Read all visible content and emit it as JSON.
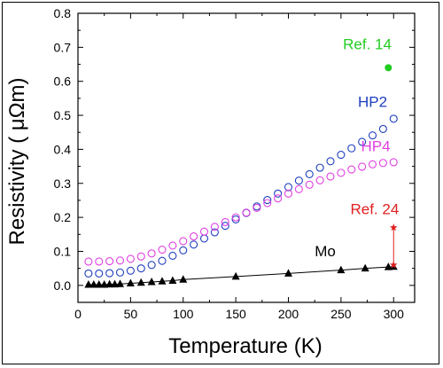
{
  "chart_data": {
    "type": "scatter",
    "xlabel": "Temperature (K)",
    "ylabel": "Resistivity ( μΩm)",
    "xlim": [
      0,
      320
    ],
    "ylim": [
      -0.05,
      0.8
    ],
    "xticks": [
      0,
      50,
      100,
      150,
      200,
      250,
      300
    ],
    "yticks": [
      0.0,
      0.1,
      0.2,
      0.3,
      0.4,
      0.5,
      0.6,
      0.7,
      0.8
    ],
    "ytick_labels": [
      "0.0",
      "0.1",
      "0.2",
      "0.3",
      "0.4",
      "0.5",
      "0.6",
      "0.7",
      "0.8"
    ],
    "grid": false,
    "series": [
      {
        "name": "HP2",
        "color": "#1f3fbf",
        "marker": "open-circle",
        "x": [
          10,
          20,
          30,
          40,
          50,
          60,
          70,
          80,
          90,
          100,
          110,
          120,
          130,
          140,
          150,
          160,
          170,
          180,
          190,
          200,
          210,
          220,
          230,
          240,
          250,
          260,
          270,
          280,
          290,
          300
        ],
        "y": [
          0.035,
          0.035,
          0.036,
          0.038,
          0.043,
          0.05,
          0.06,
          0.072,
          0.087,
          0.103,
          0.12,
          0.138,
          0.156,
          0.175,
          0.194,
          0.213,
          0.232,
          0.251,
          0.27,
          0.289,
          0.308,
          0.327,
          0.346,
          0.365,
          0.384,
          0.403,
          0.422,
          0.441,
          0.46,
          0.49
        ]
      },
      {
        "name": "HP4",
        "color": "#e040e0",
        "marker": "open-circle",
        "x": [
          10,
          20,
          30,
          40,
          50,
          60,
          70,
          80,
          90,
          100,
          110,
          120,
          130,
          140,
          150,
          160,
          170,
          180,
          190,
          200,
          210,
          220,
          230,
          240,
          250,
          260,
          270,
          280,
          290,
          300
        ],
        "y": [
          0.07,
          0.07,
          0.071,
          0.073,
          0.078,
          0.085,
          0.094,
          0.105,
          0.117,
          0.13,
          0.144,
          0.158,
          0.172,
          0.186,
          0.2,
          0.214,
          0.228,
          0.242,
          0.256,
          0.27,
          0.283,
          0.296,
          0.309,
          0.32,
          0.331,
          0.341,
          0.349,
          0.356,
          0.36,
          0.362
        ]
      },
      {
        "name": "Mo",
        "color": "#000000",
        "marker": "filled-triangle",
        "line": true,
        "x": [
          10,
          15,
          20,
          25,
          30,
          35,
          40,
          50,
          60,
          70,
          80,
          90,
          100,
          150,
          200,
          250,
          273,
          295,
          300
        ],
        "y": [
          0.002,
          0.002,
          0.002,
          0.002,
          0.003,
          0.003,
          0.004,
          0.006,
          0.008,
          0.01,
          0.012,
          0.014,
          0.017,
          0.026,
          0.035,
          0.045,
          0.05,
          0.054,
          0.055
        ]
      },
      {
        "name": "Ref. 14",
        "color": "#22cc22",
        "marker": "filled-circle",
        "x": [
          295
        ],
        "y": [
          0.64
        ]
      },
      {
        "name": "Ref. 24",
        "color": "#e02020",
        "marker": "star",
        "x": [
          300,
          300
        ],
        "y": [
          0.17,
          0.06
        ]
      }
    ],
    "annotations": [
      {
        "text": "Ref. 14",
        "color": "#22cc22",
        "x": 275,
        "y": 0.695
      },
      {
        "text": "HP2",
        "color": "#1f3fbf",
        "x": 280,
        "y": 0.525
      },
      {
        "text": "HP4",
        "color": "#e040e0",
        "x": 283,
        "y": 0.395
      },
      {
        "text": "Ref. 24",
        "color": "#e02020",
        "x": 282,
        "y": 0.21
      },
      {
        "text": "Mo",
        "color": "#000000",
        "x": 235,
        "y": 0.085
      }
    ]
  }
}
